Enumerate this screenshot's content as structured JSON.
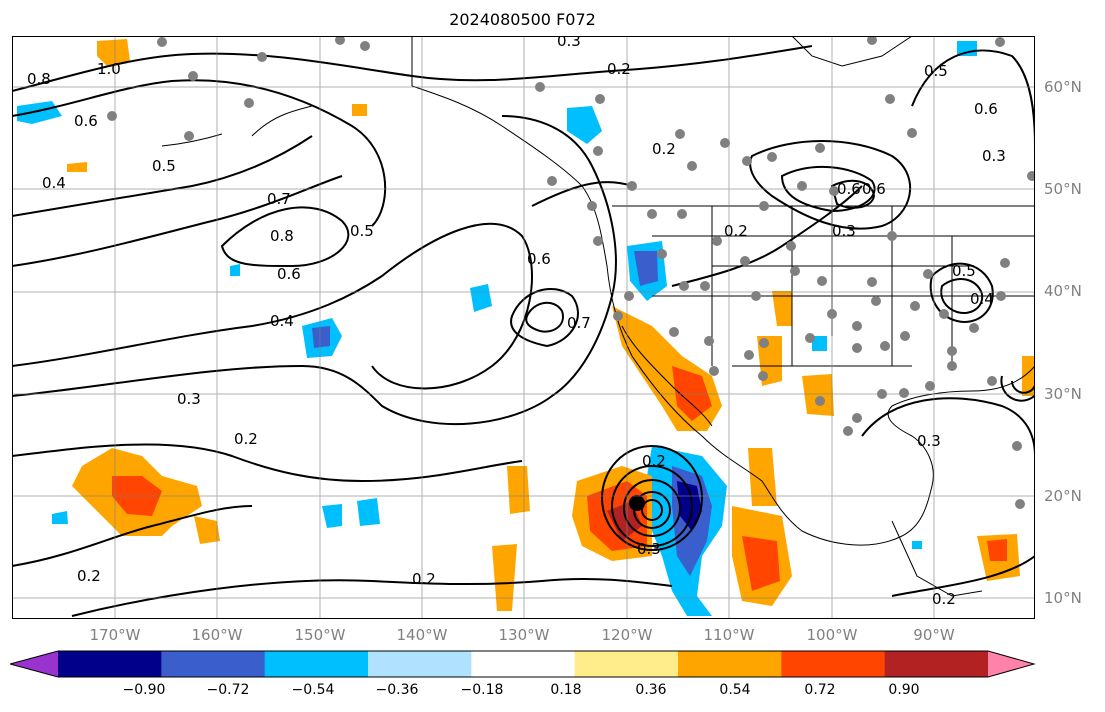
{
  "title": "2024080500 F072",
  "latitude_labels": [
    "60°N",
    "50°N",
    "40°N",
    "30°N",
    "20°N",
    "10°N"
  ],
  "longitude_labels": [
    "170°W",
    "160°W",
    "150°W",
    "140°W",
    "130°W",
    "120°W",
    "110°W",
    "100°W",
    "90°W"
  ],
  "colorbar": {
    "ticks": [
      "−0.90",
      "−0.72",
      "−0.54",
      "−0.36",
      "−0.18",
      "0.18",
      "0.36",
      "0.54",
      "0.72",
      "0.90"
    ],
    "colors": [
      "#9a32cd",
      "#00008b",
      "#3a5fcd",
      "#00bfff",
      "#b0e2ff",
      "#ffffff",
      "#ffec8b",
      "#ffa500",
      "#ff4500",
      "#b22222",
      "#ff82ab"
    ]
  },
  "contour_labels": [
    "0.3",
    "0.2",
    "0.8",
    "1.0",
    "0.6",
    "0.5",
    "0.4",
    "0.7",
    "0.8",
    "0.5",
    "0.6",
    "0.4",
    "0.3",
    "0.2",
    "0.2",
    "0.2",
    "0.6",
    "0.7",
    "0.2",
    "0.2",
    "0.6",
    "0.3",
    "0.5",
    "0.6",
    "0.3",
    "0.2",
    "0.3",
    "0.2",
    "0.4",
    "0.5",
    "0.6",
    "0.3"
  ],
  "map_data": {
    "extent_lon": [
      -180,
      -80
    ],
    "extent_lat": [
      8,
      65
    ],
    "grid_step_deg": 10,
    "field": "shaded anomaly with black contours",
    "storm_center": "≈ 119°W, 19°N"
  }
}
